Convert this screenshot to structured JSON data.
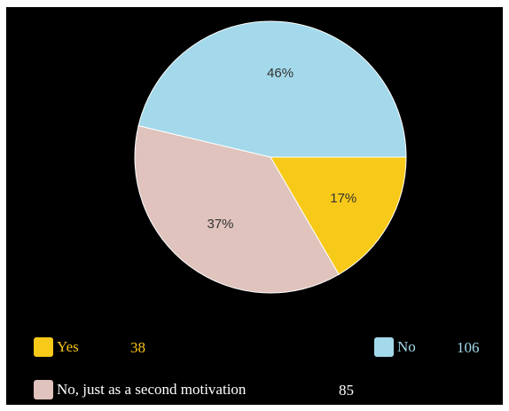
{
  "chart_data": {
    "type": "pie",
    "slices": [
      {
        "label": "Yes",
        "value": 38,
        "percent_label": "17%",
        "color": "#f7c918"
      },
      {
        "label": "No, just as a second motivation",
        "value": 85,
        "percent_label": "37%",
        "color": "#dfc3bc"
      },
      {
        "label": "No",
        "value": 106,
        "percent_label": "46%",
        "color": "#a3d9ea"
      }
    ],
    "background": "#000000",
    "legend_position": "bottom"
  },
  "legend": {
    "yes": {
      "label": "Yes",
      "value": "38"
    },
    "no": {
      "label": "No",
      "value": "106"
    },
    "second": {
      "label": "No, just as a second motivation",
      "value": "85"
    }
  }
}
